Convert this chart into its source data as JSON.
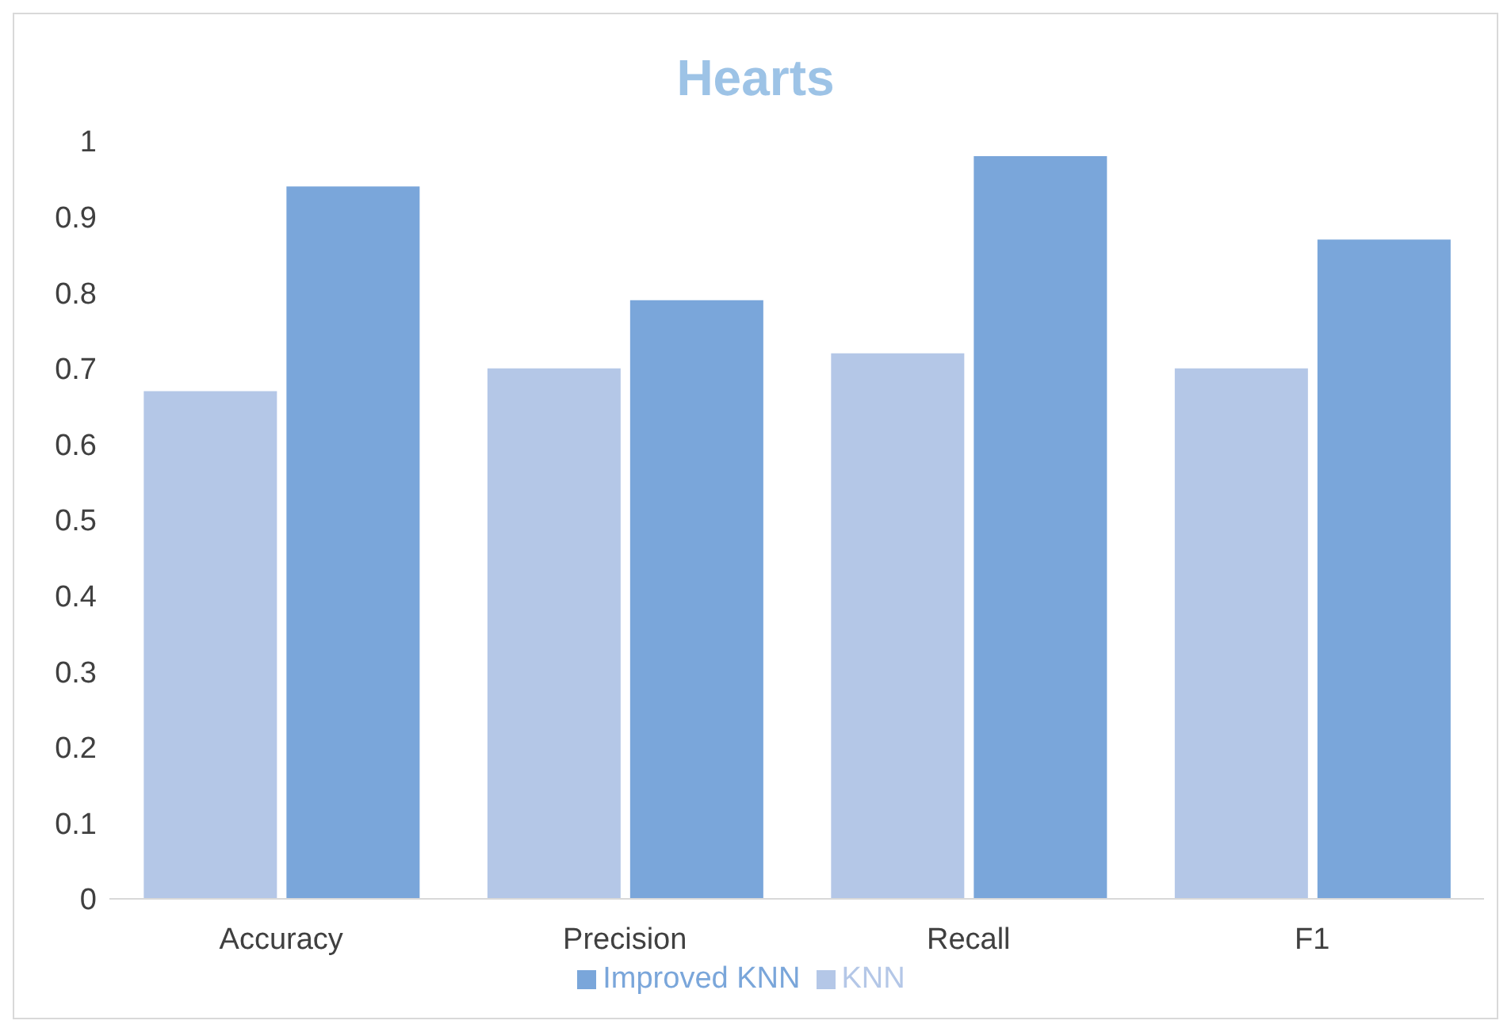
{
  "chart_data": {
    "type": "bar",
    "title": "Hearts",
    "categories": [
      "Accuracy",
      "Precision",
      "Recall",
      "F1"
    ],
    "series": [
      {
        "name": "KNN",
        "color": "#b4c7e7",
        "values": [
          0.67,
          0.7,
          0.72,
          0.7
        ]
      },
      {
        "name": "Improved KNN",
        "color": "#7aa6da",
        "values": [
          0.94,
          0.79,
          0.98,
          0.87
        ]
      }
    ],
    "ylim": [
      0,
      1
    ],
    "yticks": [
      0,
      0.1,
      0.2,
      0.3,
      0.4,
      0.5,
      0.6,
      0.7,
      0.8,
      0.9,
      1
    ],
    "grid": false,
    "legend": "bottom"
  }
}
